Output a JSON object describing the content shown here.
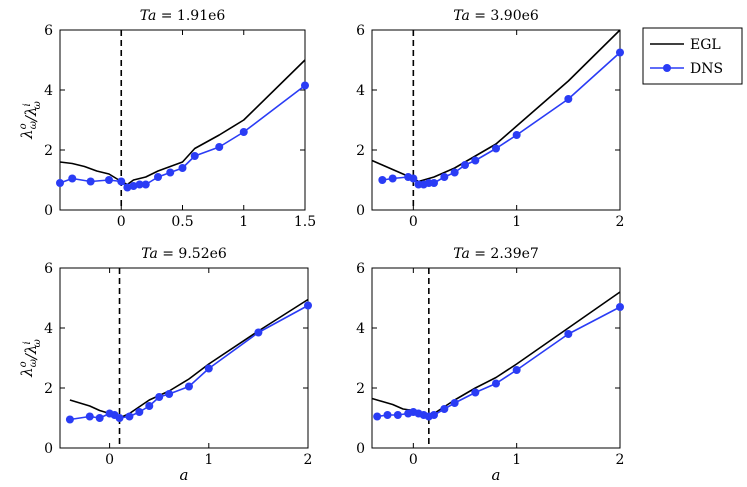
{
  "figure": {
    "legend": {
      "placement": "top-right",
      "entries": [
        {
          "label": "EGL",
          "color": "#000000",
          "marker": "none"
        },
        {
          "label": "DNS",
          "color": "#2a3cf5",
          "marker": "circle"
        }
      ]
    }
  },
  "chart_data": [
    {
      "type": "line",
      "title": "Ta = 1.91e6",
      "ylabel": "λ^o_ω/λ^i_ω",
      "xlabel": "",
      "xlim": [
        -0.5,
        1.5
      ],
      "ylim": [
        0,
        6
      ],
      "xticks": [
        0,
        0.5,
        1,
        1.5
      ],
      "xtick_labels": [
        "0",
        "0.5",
        "1",
        "1.5"
      ],
      "yticks": [
        0,
        2,
        4,
        6
      ],
      "ytick_labels": [
        "0",
        "2",
        "4",
        "6"
      ],
      "vline": 0,
      "series": [
        {
          "name": "EGL",
          "color": "#000000",
          "marker": false,
          "x": [
            -0.5,
            -0.4,
            -0.3,
            -0.2,
            -0.1,
            0,
            0.05,
            0.1,
            0.15,
            0.2,
            0.3,
            0.4,
            0.5,
            0.6,
            0.8,
            1.0,
            1.5
          ],
          "y": [
            1.6,
            1.55,
            1.45,
            1.3,
            1.2,
            0.95,
            0.85,
            1.0,
            1.05,
            1.1,
            1.3,
            1.45,
            1.6,
            2.05,
            2.5,
            3.0,
            5.0
          ]
        },
        {
          "name": "DNS",
          "color": "#2a3cf5",
          "marker": true,
          "x": [
            -0.5,
            -0.4,
            -0.25,
            -0.1,
            0,
            0.05,
            0.1,
            0.15,
            0.2,
            0.3,
            0.4,
            0.5,
            0.6,
            0.8,
            1.0,
            1.5
          ],
          "y": [
            0.9,
            1.05,
            0.95,
            1.0,
            0.95,
            0.75,
            0.8,
            0.85,
            0.85,
            1.1,
            1.25,
            1.4,
            1.8,
            2.1,
            2.6,
            4.15
          ]
        }
      ]
    },
    {
      "type": "line",
      "title": "Ta = 3.90e6",
      "ylabel": "",
      "xlabel": "",
      "xlim": [
        -0.4,
        2
      ],
      "ylim": [
        0,
        6
      ],
      "xticks": [
        0,
        1,
        2
      ],
      "xtick_labels": [
        "0",
        "1",
        "2"
      ],
      "yticks": [
        0,
        2,
        4,
        6
      ],
      "ytick_labels": [
        "0",
        "2",
        "4",
        "6"
      ],
      "vline": 0,
      "series": [
        {
          "name": "EGL",
          "color": "#000000",
          "marker": false,
          "x": [
            -0.4,
            -0.3,
            -0.2,
            -0.1,
            0,
            0.05,
            0.1,
            0.2,
            0.4,
            0.6,
            0.8,
            1.0,
            1.5,
            2.0
          ],
          "y": [
            1.65,
            1.5,
            1.35,
            1.2,
            1.05,
            0.95,
            1.0,
            1.1,
            1.4,
            1.8,
            2.2,
            2.8,
            4.3,
            6.0
          ]
        },
        {
          "name": "DNS",
          "color": "#2a3cf5",
          "marker": true,
          "x": [
            -0.3,
            -0.2,
            -0.05,
            0,
            0.05,
            0.1,
            0.15,
            0.2,
            0.3,
            0.4,
            0.5,
            0.6,
            0.8,
            1.0,
            1.5,
            2.0
          ],
          "y": [
            1.0,
            1.05,
            1.1,
            1.05,
            0.85,
            0.85,
            0.9,
            0.9,
            1.1,
            1.25,
            1.5,
            1.65,
            2.05,
            2.5,
            3.7,
            5.25
          ]
        }
      ]
    },
    {
      "type": "line",
      "title": "Ta = 9.52e6",
      "ylabel": "λ^o_ω/λ^i_ω",
      "xlabel": "a",
      "xlim": [
        -0.5,
        2
      ],
      "ylim": [
        0,
        6
      ],
      "xticks": [
        0,
        1,
        2
      ],
      "xtick_labels": [
        "0",
        "1",
        "2"
      ],
      "yticks": [
        0,
        2,
        4,
        6
      ],
      "ytick_labels": [
        "0",
        "2",
        "4",
        "6"
      ],
      "vline": 0.1,
      "series": [
        {
          "name": "EGL",
          "color": "#000000",
          "marker": false,
          "x": [
            -0.4,
            -0.3,
            -0.2,
            -0.1,
            0,
            0.1,
            0.2,
            0.4,
            0.6,
            0.8,
            1.0,
            1.5,
            2.0
          ],
          "y": [
            1.6,
            1.5,
            1.4,
            1.25,
            1.15,
            1.0,
            1.15,
            1.6,
            1.9,
            2.3,
            2.8,
            3.9,
            4.95
          ]
        },
        {
          "name": "DNS",
          "color": "#2a3cf5",
          "marker": true,
          "x": [
            -0.4,
            -0.2,
            -0.1,
            0,
            0.05,
            0.1,
            0.2,
            0.3,
            0.4,
            0.5,
            0.6,
            0.8,
            1.0,
            1.5,
            2.0
          ],
          "y": [
            0.95,
            1.05,
            1.0,
            1.15,
            1.1,
            1.0,
            1.05,
            1.2,
            1.4,
            1.7,
            1.8,
            2.05,
            2.65,
            3.85,
            4.75
          ]
        }
      ]
    },
    {
      "type": "line",
      "title": "Ta = 2.39e7",
      "ylabel": "",
      "xlabel": "a",
      "xlim": [
        -0.4,
        2
      ],
      "ylim": [
        0,
        6
      ],
      "xticks": [
        0,
        1,
        2
      ],
      "xtick_labels": [
        "0",
        "1",
        "2"
      ],
      "yticks": [
        0,
        2,
        4,
        6
      ],
      "ytick_labels": [
        "0",
        "2",
        "4",
        "6"
      ],
      "vline": 0.15,
      "series": [
        {
          "name": "EGL",
          "color": "#000000",
          "marker": false,
          "x": [
            -0.4,
            -0.3,
            -0.2,
            -0.1,
            0,
            0.1,
            0.15,
            0.2,
            0.4,
            0.6,
            0.8,
            1.0,
            1.5,
            2.0
          ],
          "y": [
            1.65,
            1.55,
            1.45,
            1.3,
            1.25,
            1.15,
            1.05,
            1.15,
            1.6,
            2.0,
            2.35,
            2.8,
            4.0,
            5.2
          ]
        },
        {
          "name": "DNS",
          "color": "#2a3cf5",
          "marker": true,
          "x": [
            -0.35,
            -0.25,
            -0.15,
            -0.05,
            0.0,
            0.05,
            0.1,
            0.15,
            0.2,
            0.3,
            0.4,
            0.6,
            0.8,
            1.0,
            1.5,
            2.0
          ],
          "y": [
            1.05,
            1.1,
            1.1,
            1.15,
            1.2,
            1.15,
            1.1,
            1.05,
            1.1,
            1.3,
            1.5,
            1.85,
            2.15,
            2.6,
            3.8,
            4.7
          ]
        }
      ]
    }
  ]
}
